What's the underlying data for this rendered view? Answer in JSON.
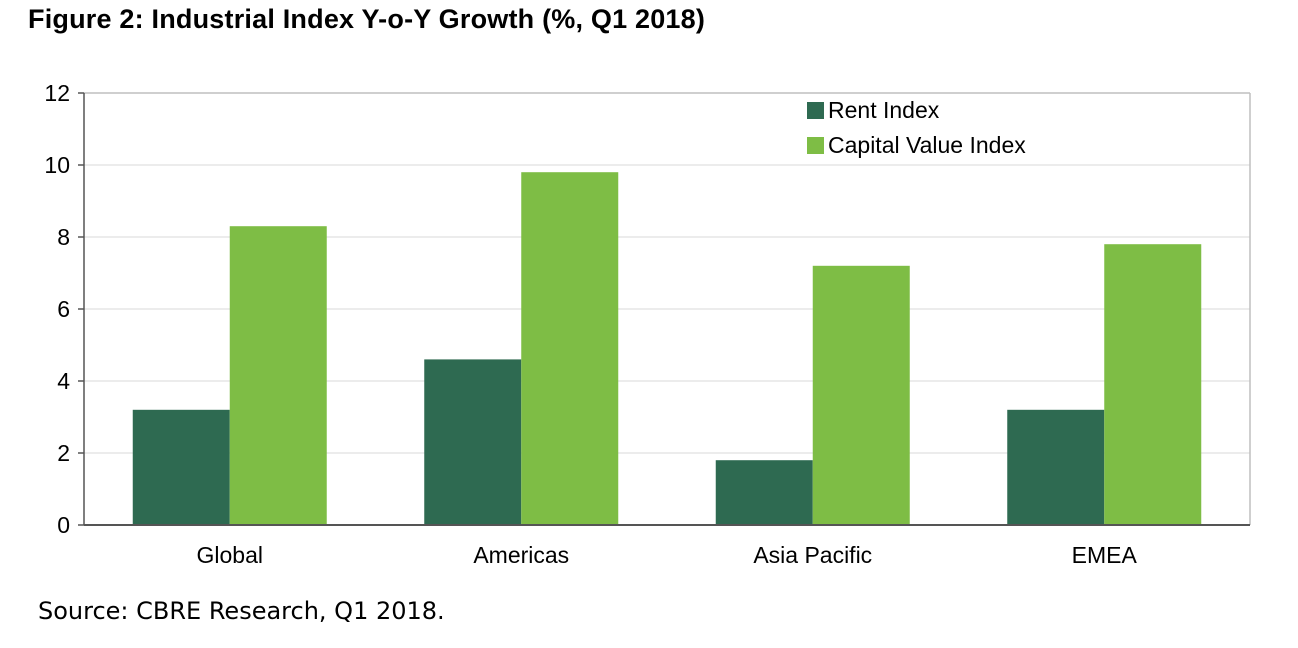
{
  "title": "Figure 2: Industrial Index Y-o-Y Growth (%, Q1 2018)",
  "source": "Source: CBRE Research, Q1 2018.",
  "colors": {
    "rent": "#2e6a51",
    "capital": "#7ebd45",
    "grid": "#e6e6e6",
    "axis": "#555555"
  },
  "chart_data": {
    "type": "bar",
    "categories": [
      "Global",
      "Americas",
      "Asia Pacific",
      "EMEA"
    ],
    "series": [
      {
        "name": "Rent Index",
        "values": [
          3.2,
          4.6,
          1.8,
          3.2
        ]
      },
      {
        "name": "Capital Value Index",
        "values": [
          8.3,
          9.8,
          7.2,
          7.8
        ]
      }
    ],
    "yticks": [
      "0",
      "2",
      "4",
      "6",
      "8",
      "10",
      "12"
    ],
    "ylim": [
      0,
      12
    ],
    "grid": true,
    "legend_position": "top-right"
  }
}
